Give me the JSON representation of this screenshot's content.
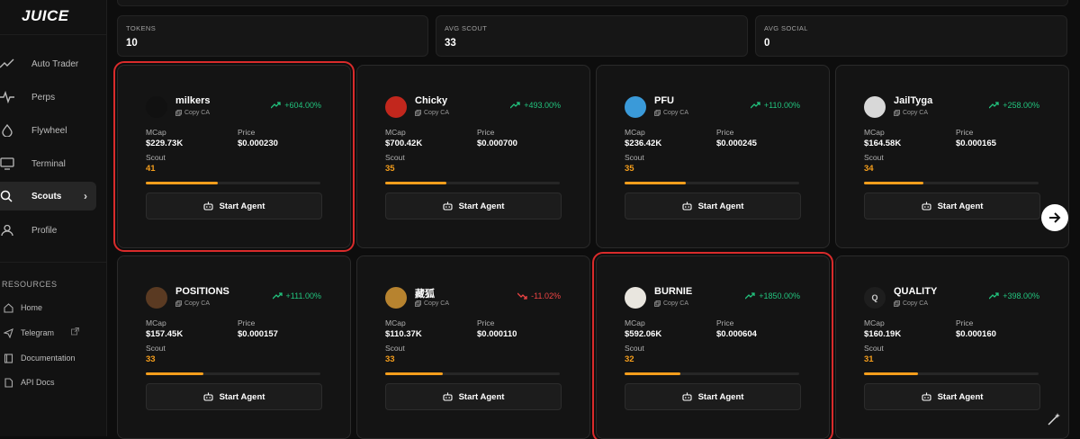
{
  "app": {
    "logo": "JUICE"
  },
  "sidebar": {
    "items": [
      {
        "label": "Auto Trader",
        "icon": "trending-up-icon"
      },
      {
        "label": "Perps",
        "icon": "activity-icon"
      },
      {
        "label": "Flywheel",
        "icon": "droplet-icon"
      },
      {
        "label": "Terminal",
        "icon": "monitor-icon"
      },
      {
        "label": "Scouts",
        "icon": "search-icon",
        "active": true
      },
      {
        "label": "Profile",
        "icon": "user-icon"
      }
    ],
    "resources_title": "RESOURCES",
    "resources": [
      {
        "label": "Home",
        "icon": "home-icon"
      },
      {
        "label": "Telegram",
        "icon": "send-icon",
        "external": true
      },
      {
        "label": "Documentation",
        "icon": "book-icon"
      },
      {
        "label": "API Docs",
        "icon": "file-icon"
      }
    ]
  },
  "stats": [
    {
      "label": "TOKENS",
      "value": "10"
    },
    {
      "label": "AVG SCOUT",
      "value": "33"
    },
    {
      "label": "AVG SOCIAL",
      "value": "0"
    }
  ],
  "cards": [
    {
      "name": "milkers",
      "copy": "Copy CA",
      "change": "+604.00%",
      "direction": "up",
      "mcap_label": "MCap",
      "mcap": "$229.73K",
      "price_label": "Price",
      "price": "$0.000230",
      "scout_label": "Scout",
      "scout": "41",
      "scout_fraction": 0.41,
      "button": "Start Agent",
      "avatar_color": "#111111",
      "highlighted": true
    },
    {
      "name": "Chicky",
      "copy": "Copy CA",
      "change": "+493.00%",
      "direction": "up",
      "mcap_label": "MCap",
      "mcap": "$700.42K",
      "price_label": "Price",
      "price": "$0.000700",
      "scout_label": "Scout",
      "scout": "35",
      "scout_fraction": 0.35,
      "button": "Start Agent",
      "avatar_color": "#c2271d",
      "highlighted": false
    },
    {
      "name": "PFU",
      "copy": "Copy CA",
      "change": "+110.00%",
      "direction": "up",
      "mcap_label": "MCap",
      "mcap": "$236.42K",
      "price_label": "Price",
      "price": "$0.000245",
      "scout_label": "Scout",
      "scout": "35",
      "scout_fraction": 0.35,
      "button": "Start Agent",
      "avatar_color": "#3a9ad9",
      "highlighted": false
    },
    {
      "name": "JailTyga",
      "copy": "Copy CA",
      "change": "+258.00%",
      "direction": "up",
      "mcap_label": "MCap",
      "mcap": "$164.58K",
      "price_label": "Price",
      "price": "$0.000165",
      "scout_label": "Scout",
      "scout": "34",
      "scout_fraction": 0.34,
      "button": "Start Agent",
      "avatar_color": "#d8d8d8",
      "highlighted": false
    },
    {
      "name": "POSITIONS",
      "copy": "Copy CA",
      "change": "+111.00%",
      "direction": "up",
      "mcap_label": "MCap",
      "mcap": "$157.45K",
      "price_label": "Price",
      "price": "$0.000157",
      "scout_label": "Scout",
      "scout": "33",
      "scout_fraction": 0.33,
      "button": "Start Agent",
      "avatar_color": "#5a3a22",
      "highlighted": false
    },
    {
      "name": "藏狐",
      "copy": "Copy CA",
      "change": "-11.02%",
      "direction": "down",
      "mcap_label": "MCap",
      "mcap": "$110.37K",
      "price_label": "Price",
      "price": "$0.000110",
      "scout_label": "Scout",
      "scout": "33",
      "scout_fraction": 0.33,
      "button": "Start Agent",
      "avatar_color": "#b7832f",
      "highlighted": false
    },
    {
      "name": "BURNIE",
      "copy": "Copy CA",
      "change": "+1850.00%",
      "direction": "up",
      "mcap_label": "MCap",
      "mcap": "$592.06K",
      "price_label": "Price",
      "price": "$0.000604",
      "scout_label": "Scout",
      "scout": "32",
      "scout_fraction": 0.32,
      "button": "Start Agent",
      "avatar_color": "#e9e6df",
      "highlighted": true
    },
    {
      "name": "QUALITY",
      "copy": "Copy CA",
      "change": "+398.00%",
      "direction": "up",
      "mcap_label": "MCap",
      "mcap": "$160.19K",
      "price_label": "Price",
      "price": "$0.000160",
      "scout_label": "Scout",
      "scout": "31",
      "scout_fraction": 0.31,
      "button": "Start Agent",
      "avatar_color": "#1e1e1e",
      "avatar_letter": "Q",
      "highlighted": false
    }
  ],
  "colors": {
    "accent": "#f59e1c",
    "up": "#22c47e",
    "down": "#ef4444",
    "highlight": "#d92b2b"
  }
}
